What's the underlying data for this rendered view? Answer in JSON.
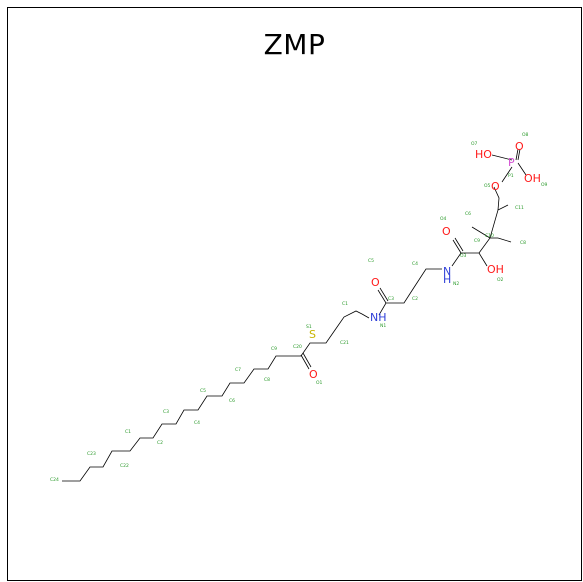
{
  "title": "ZMP",
  "colors": {
    "bond": "#000000",
    "oxygen": "#ff1a1a",
    "nitrogen": "#2f3fd8",
    "sulfur": "#c7b400",
    "phosphorus": "#d34fd3",
    "atom_label": "#2a9a2a"
  },
  "molecule": {
    "atoms": [
      {
        "id": "o7",
        "text": "O7"
      },
      {
        "id": "o8",
        "text": "O8"
      },
      {
        "id": "oh1",
        "text": "HO"
      },
      {
        "id": "p",
        "text": "P"
      },
      {
        "id": "p1",
        "text": "P1"
      },
      {
        "id": "oh2",
        "text": "OH"
      },
      {
        "id": "o9",
        "text": "O9"
      },
      {
        "id": "o5",
        "text": "O5"
      },
      {
        "id": "c11",
        "text": "C11"
      },
      {
        "id": "c6",
        "text": "C6"
      },
      {
        "id": "o4",
        "text": "O4"
      },
      {
        "id": "c9",
        "text": "C9"
      },
      {
        "id": "c10",
        "text": "C10"
      },
      {
        "id": "c8",
        "text": "C8"
      },
      {
        "id": "n2",
        "text": "N2"
      },
      {
        "id": "o3",
        "text": "O3"
      },
      {
        "id": "oh3",
        "text": "OH"
      },
      {
        "id": "o2",
        "text": "O2"
      },
      {
        "id": "c5",
        "text": "C5"
      },
      {
        "id": "c4",
        "text": "C4"
      },
      {
        "id": "c3",
        "text": "C3"
      },
      {
        "id": "n1",
        "text": "N1"
      },
      {
        "id": "c2",
        "text": "C2"
      },
      {
        "id": "c1",
        "text": "C1"
      },
      {
        "id": "s1",
        "text": "S1"
      },
      {
        "id": "c20",
        "text": "C20"
      },
      {
        "id": "o1",
        "text": "O1"
      },
      {
        "id": "c9b",
        "text": "C9"
      },
      {
        "id": "c8b",
        "text": "C8"
      },
      {
        "id": "c7",
        "text": "C7"
      },
      {
        "id": "c6b",
        "text": "C6"
      },
      {
        "id": "c5b",
        "text": "C5"
      },
      {
        "id": "c4b",
        "text": "C4"
      },
      {
        "id": "c3b",
        "text": "C3"
      },
      {
        "id": "c2b",
        "text": "C2"
      },
      {
        "id": "c1b",
        "text": "C1"
      },
      {
        "id": "c21",
        "text": "C21"
      },
      {
        "id": "c22",
        "text": "C22"
      },
      {
        "id": "c23",
        "text": "C23"
      },
      {
        "id": "c24",
        "text": "C24"
      }
    ]
  }
}
